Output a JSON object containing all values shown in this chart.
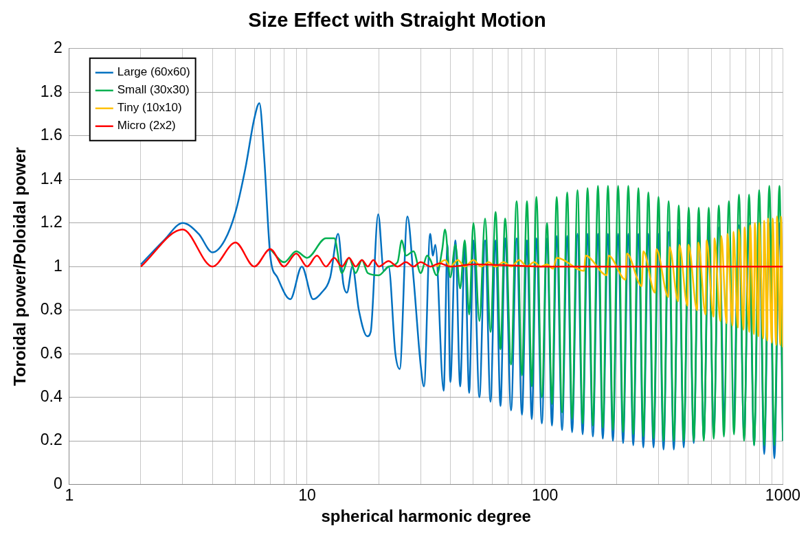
{
  "chart_data": {
    "type": "line",
    "title": "Size Effect with Straight Motion",
    "xlabel": "spherical harmonic degree",
    "ylabel": "Toroidal power/Poloidal power",
    "log": "x",
    "xlim": [
      1,
      1000
    ],
    "ylim": [
      0,
      2
    ],
    "xticks": [
      1,
      {
        "value": 2,
        "label": null
      },
      {
        "value": 3,
        "label": null
      },
      {
        "value": 4,
        "label": null
      },
      {
        "value": 5,
        "label": null
      },
      {
        "value": 6,
        "label": null
      },
      {
        "value": 7,
        "label": null
      },
      {
        "value": 8,
        "label": null
      },
      {
        "value": 9,
        "label": null
      },
      10,
      {
        "value": 20,
        "label": null
      },
      {
        "value": 30,
        "label": null
      },
      {
        "value": 40,
        "label": null
      },
      {
        "value": 50,
        "label": null
      },
      {
        "value": 60,
        "label": null
      },
      {
        "value": 70,
        "label": null
      },
      {
        "value": 80,
        "label": null
      },
      {
        "value": 90,
        "label": null
      },
      100,
      {
        "value": 200,
        "label": null
      },
      {
        "value": 300,
        "label": null
      },
      {
        "value": 400,
        "label": null
      },
      {
        "value": 500,
        "label": null
      },
      {
        "value": 600,
        "label": null
      },
      {
        "value": 700,
        "label": null
      },
      {
        "value": 800,
        "label": null
      },
      {
        "value": 900,
        "label": null
      },
      1000
    ],
    "yticks": [
      0,
      0.2,
      0.4,
      0.6,
      0.8,
      1,
      1.2,
      1.4,
      1.6,
      1.8,
      2
    ],
    "grid": true,
    "legend": "top left",
    "marker": "none",
    "line_style": "solid",
    "series": [
      {
        "name": "Large (60x60)",
        "color": "#0070c0",
        "x": [
          2,
          2.5,
          3,
          3.5,
          4,
          4.5,
          5,
          5.5,
          6,
          6.3,
          6.6,
          7,
          7.5,
          8.5,
          9.5,
          10.6,
          11.5,
          12.5,
          13.5,
          14.2,
          14.7,
          15.5,
          16.5,
          17.9,
          18.5,
          19.9,
          21,
          22,
          23.5,
          24.5,
          26.4,
          28,
          30,
          31,
          32.9,
          33.8,
          34.6,
          37.5,
          38.9,
          40,
          42,
          44,
          46,
          48,
          50,
          53,
          56,
          59,
          62,
          65,
          68,
          72,
          76,
          80,
          84,
          88,
          92,
          97,
          102,
          107,
          112,
          118,
          124,
          130,
          137,
          144,
          151,
          159,
          167,
          175,
          184,
          193,
          203,
          213,
          224,
          235,
          247,
          259,
          272,
          286,
          300,
          315,
          331,
          348,
          365,
          383,
          402,
          422,
          443,
          465,
          488,
          512,
          538,
          565,
          593,
          623,
          654,
          687,
          721,
          757,
          795,
          835,
          877,
          921,
          967,
          1000
        ],
        "values": [
          1.01,
          1.12,
          1.2,
          1.15,
          1.065,
          1.12,
          1.25,
          1.45,
          1.68,
          1.75,
          1.5,
          1.05,
          0.95,
          0.85,
          1.0,
          0.85,
          0.88,
          0.95,
          1.15,
          0.92,
          0.88,
          1.0,
          0.8,
          0.68,
          0.7,
          1.24,
          0.98,
          1.0,
          0.6,
          0.53,
          1.23,
          0.95,
          0.55,
          0.45,
          1.15,
          1.05,
          1.1,
          0.43,
          1.1,
          0.47,
          1.12,
          0.45,
          1.1,
          0.42,
          1.12,
          0.4,
          1.12,
          0.38,
          1.12,
          0.36,
          1.13,
          0.34,
          1.13,
          0.32,
          1.12,
          0.3,
          1.13,
          0.28,
          1.13,
          0.27,
          1.14,
          0.25,
          1.14,
          0.24,
          1.15,
          0.23,
          1.15,
          0.22,
          1.15,
          0.21,
          1.15,
          0.2,
          1.15,
          0.19,
          1.15,
          0.18,
          1.15,
          0.17,
          1.15,
          0.17,
          1.15,
          0.16,
          1.16,
          0.16,
          1.17,
          0.17,
          1.17,
          0.19,
          1.18,
          0.21,
          1.18,
          0.23,
          1.18,
          0.25,
          null,
          0.25,
          1.19,
          0.22,
          1.2,
          0.18,
          1.2,
          0.14,
          1.2,
          0.12,
          1.2,
          0.2
        ]
      },
      {
        "name": "Small (30x30)",
        "color": "#00b050",
        "x": [
          7,
          8,
          9,
          10,
          12,
          13,
          14,
          15,
          16,
          17,
          18,
          20,
          22,
          24,
          25,
          26,
          28,
          30,
          32,
          33,
          35,
          37,
          38,
          40,
          42,
          44,
          46,
          48,
          50,
          53,
          56,
          59,
          62,
          65,
          68,
          72,
          76,
          80,
          84,
          88,
          92,
          97,
          102,
          107,
          112,
          118,
          124,
          130,
          137,
          144,
          151,
          159,
          167,
          175,
          184,
          193,
          203,
          213,
          224,
          235,
          247,
          259,
          272,
          286,
          300,
          315,
          331,
          348,
          365,
          383,
          402,
          422,
          443,
          465,
          488,
          512,
          538,
          565,
          593,
          623,
          654,
          687,
          721,
          757,
          795,
          835,
          877,
          921,
          967,
          1000
        ],
        "values": [
          1.08,
          1.02,
          1.07,
          1.04,
          1.13,
          1.13,
          0.97,
          1.04,
          0.97,
          1.03,
          0.97,
          0.96,
          1.0,
          1.02,
          1.12,
          1.05,
          1.07,
          0.97,
          1.05,
          1.03,
          0.96,
          1.08,
          1.17,
          0.95,
          1.1,
          0.9,
          1.12,
          0.78,
          1.2,
          0.75,
          1.22,
          0.7,
          1.25,
          0.62,
          1.22,
          0.55,
          1.3,
          0.5,
          1.3,
          0.45,
          1.32,
          0.4,
          1.2,
          0.37,
          1.32,
          0.33,
          1.34,
          0.3,
          1.35,
          0.28,
          1.36,
          0.27,
          1.37,
          0.26,
          1.37,
          0.25,
          1.37,
          0.24,
          1.37,
          0.23,
          1.36,
          0.22,
          1.34,
          0.21,
          1.32,
          0.2,
          1.3,
          0.2,
          1.28,
          0.2,
          1.27,
          0.2,
          1.27,
          0.2,
          1.27,
          0.21,
          1.28,
          0.22,
          1.3,
          0.23,
          1.33,
          0.2,
          1.33,
          0.18,
          1.35,
          0.18,
          1.37,
          0.18,
          1.37,
          0.2
        ]
      },
      {
        "name": "Tiny (10x10)",
        "color": "#ffc000",
        "x": [
          35,
          38,
          40,
          43,
          46,
          50,
          54,
          58,
          62,
          67,
          72,
          78,
          84,
          90,
          96,
          102,
          108,
          112,
          146,
          148,
          182,
          185,
          218,
          221,
          255,
          259,
          290,
          294,
          330,
          334,
          363,
          367,
          397,
          401,
          436,
          441,
          473,
          478,
          511,
          516,
          546,
          551,
          580,
          585,
          614,
          620,
          647,
          653,
          684,
          690,
          722,
          728,
          756,
          762,
          789,
          795,
          827,
          834,
          860,
          866,
          899,
          906,
          937,
          944,
          976,
          983,
          1000
        ],
        "values": [
          1.0,
          1.03,
          1.0,
          1.03,
          1.0,
          1.03,
          1.0,
          1.02,
          1.0,
          1.02,
          1.0,
          1.03,
          1.0,
          1.02,
          1.0,
          1.01,
          0.99,
          1.04,
          0.98,
          1.05,
          0.96,
          1.05,
          0.94,
          1.06,
          0.91,
          1.07,
          0.88,
          1.08,
          0.86,
          1.09,
          0.84,
          1.1,
          0.82,
          1.1,
          0.8,
          1.11,
          0.78,
          1.12,
          0.77,
          1.13,
          0.75,
          1.14,
          0.74,
          1.15,
          0.73,
          1.16,
          0.72,
          1.17,
          0.71,
          1.18,
          0.7,
          1.19,
          0.69,
          1.2,
          0.68,
          1.2,
          0.67,
          1.21,
          0.66,
          1.22,
          0.65,
          1.22,
          0.64,
          1.23,
          0.64,
          1.23,
          0.63
        ]
      },
      {
        "name": "Micro (2x2)",
        "color": "#ff0000",
        "x": [
          2,
          3,
          4,
          5,
          6,
          7,
          8,
          9,
          10,
          11,
          12,
          13,
          14,
          15,
          16,
          17,
          18,
          19,
          20,
          22,
          24,
          26,
          28,
          30,
          33,
          36,
          40,
          50,
          100,
          300,
          1000
        ],
        "values": [
          1.0,
          1.17,
          1.0,
          1.11,
          1.0,
          1.08,
          1.0,
          1.06,
          1.0,
          1.05,
          1.0,
          1.04,
          1.0,
          1.04,
          1.0,
          1.03,
          1.0,
          1.03,
          1.0,
          1.025,
          1.0,
          1.02,
          1.0,
          1.02,
          1.0,
          1.015,
          1.0,
          1.01,
          1.0,
          1.0,
          1.0
        ]
      }
    ]
  }
}
